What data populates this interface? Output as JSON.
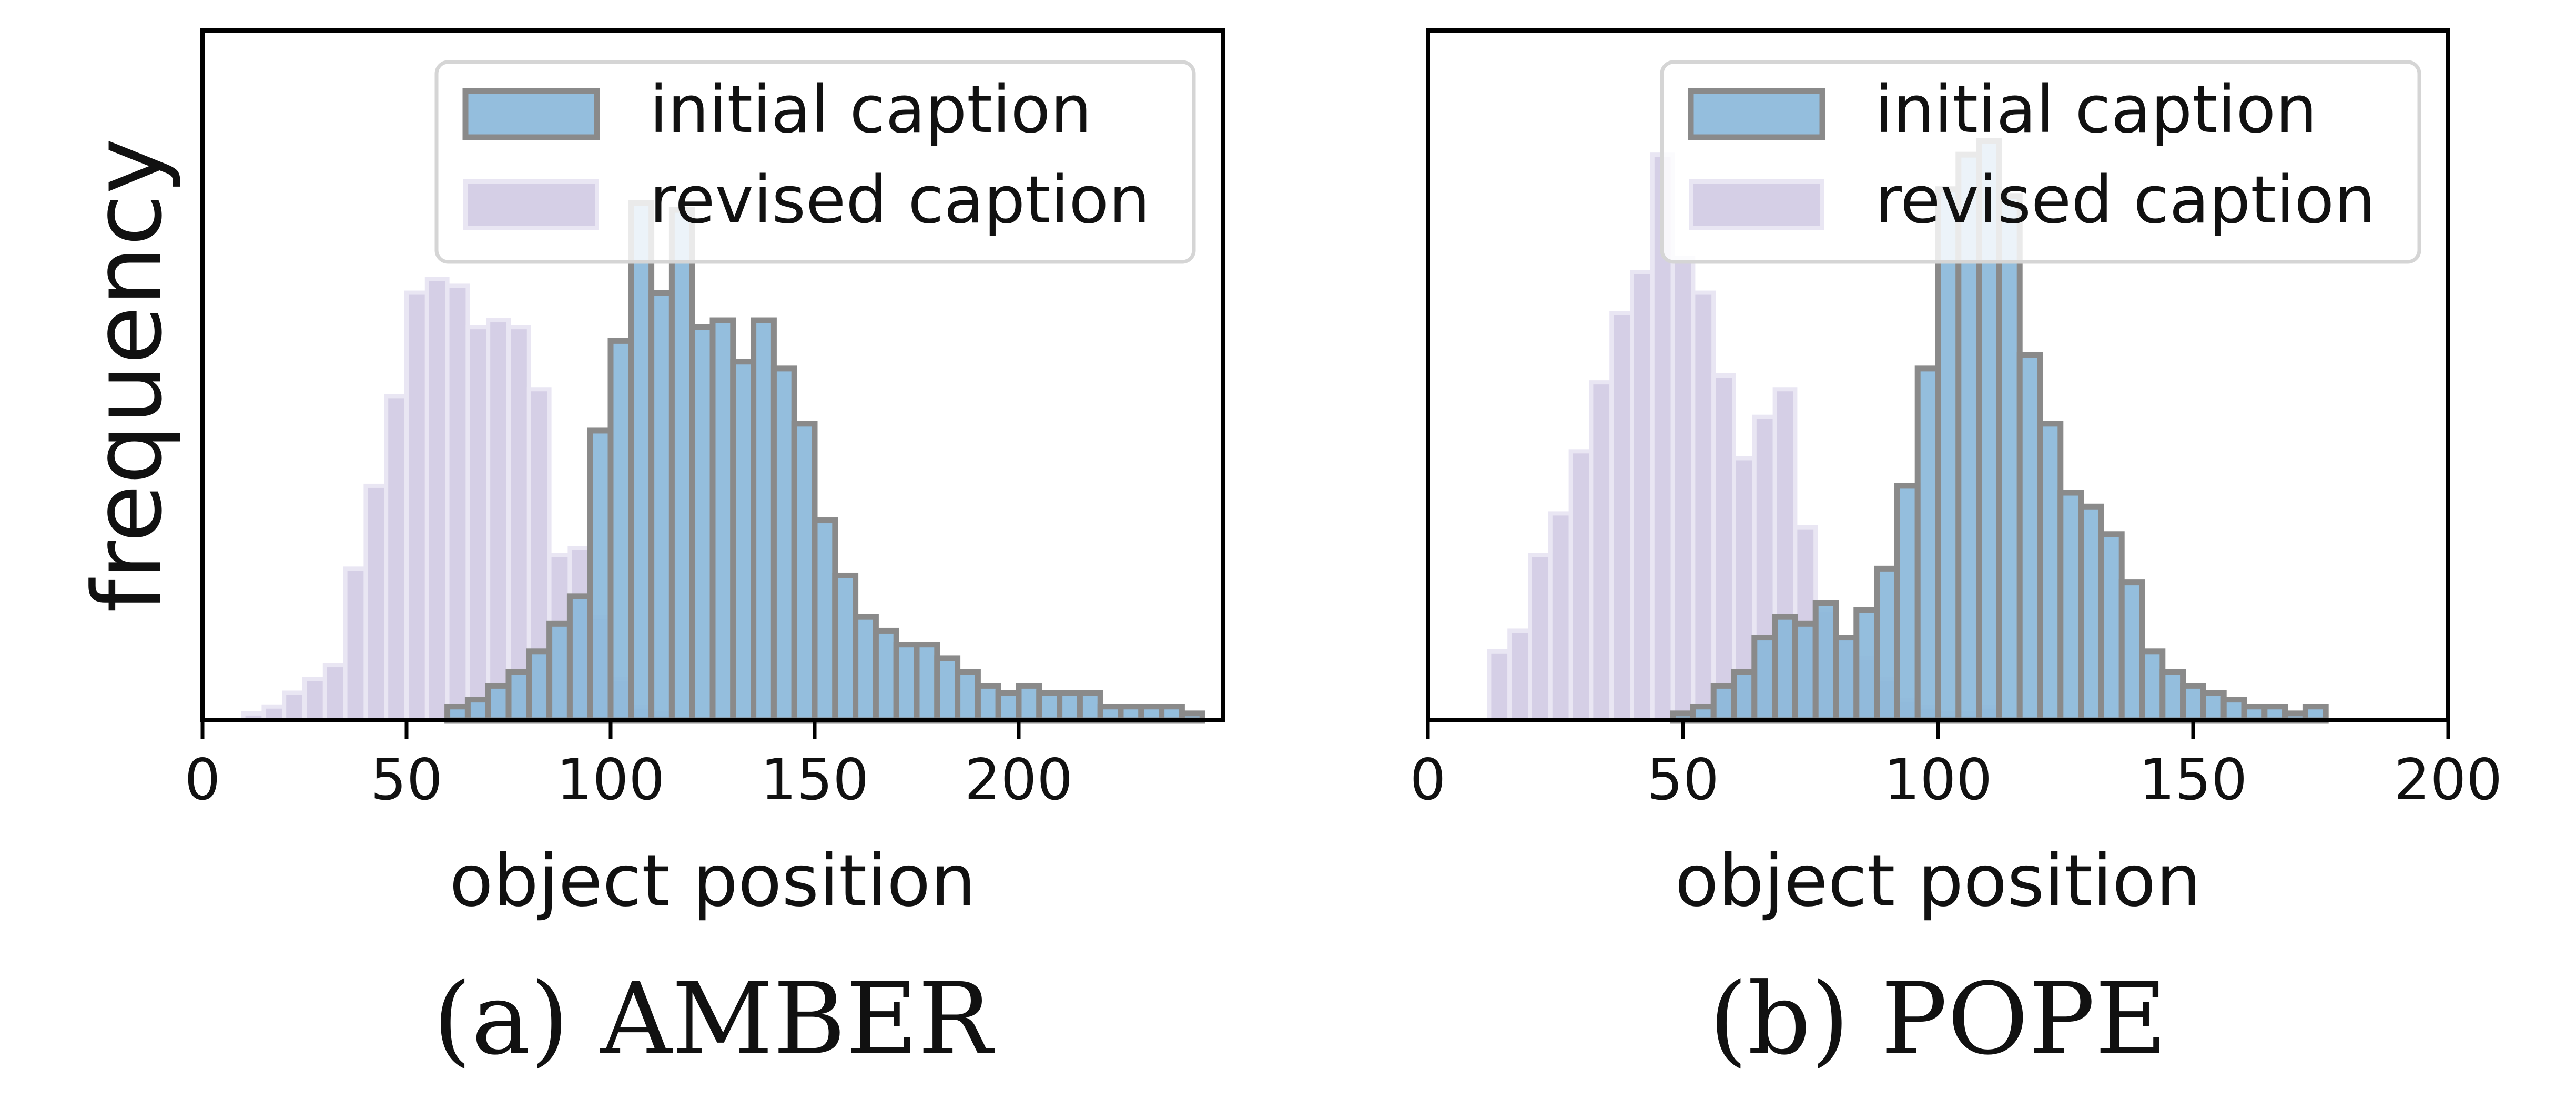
{
  "chart_data": [
    {
      "id": "amber",
      "type": "histogram",
      "subcaption": "(a) AMBER",
      "xlabel": "object position",
      "ylabel": "frequency",
      "show_ylabel": true,
      "show_yticks": false,
      "xlim": [
        0,
        250
      ],
      "ylim": [
        0,
        1.0
      ],
      "x_ticks": [
        0,
        50,
        100,
        150,
        200
      ],
      "x_tick_labels": [
        "0",
        "50",
        "100",
        "150",
        "200"
      ],
      "bin_width": 5,
      "legend": {
        "position": "top-right",
        "entries": [
          "initial caption",
          "revised caption"
        ]
      },
      "series": [
        {
          "name": "initial caption",
          "color": "#8bb9da",
          "edge": "#8a8a8a",
          "bins": [
            [
              60,
              0.02
            ],
            [
              65,
              0.03
            ],
            [
              70,
              0.05
            ],
            [
              75,
              0.07
            ],
            [
              80,
              0.1
            ],
            [
              85,
              0.14
            ],
            [
              90,
              0.18
            ],
            [
              95,
              0.42
            ],
            [
              100,
              0.55
            ],
            [
              105,
              0.75
            ],
            [
              110,
              0.62
            ],
            [
              115,
              0.74
            ],
            [
              120,
              0.57
            ],
            [
              125,
              0.58
            ],
            [
              130,
              0.52
            ],
            [
              135,
              0.58
            ],
            [
              140,
              0.51
            ],
            [
              145,
              0.43
            ],
            [
              150,
              0.29
            ],
            [
              155,
              0.21
            ],
            [
              160,
              0.15
            ],
            [
              165,
              0.13
            ],
            [
              170,
              0.11
            ],
            [
              175,
              0.11
            ],
            [
              180,
              0.09
            ],
            [
              185,
              0.07
            ],
            [
              190,
              0.05
            ],
            [
              195,
              0.04
            ],
            [
              200,
              0.05
            ],
            [
              205,
              0.04
            ],
            [
              210,
              0.04
            ],
            [
              215,
              0.04
            ],
            [
              220,
              0.02
            ],
            [
              225,
              0.02
            ],
            [
              230,
              0.02
            ],
            [
              235,
              0.02
            ],
            [
              240,
              0.01
            ]
          ]
        },
        {
          "name": "revised caption",
          "color": "#c9c2df",
          "edge": "#e9e6f3",
          "bins": [
            [
              10,
              0.01
            ],
            [
              15,
              0.02
            ],
            [
              20,
              0.04
            ],
            [
              25,
              0.06
            ],
            [
              30,
              0.08
            ],
            [
              35,
              0.22
            ],
            [
              40,
              0.34
            ],
            [
              45,
              0.47
            ],
            [
              50,
              0.62
            ],
            [
              55,
              0.64
            ],
            [
              60,
              0.63
            ],
            [
              65,
              0.57
            ],
            [
              70,
              0.58
            ],
            [
              75,
              0.57
            ],
            [
              80,
              0.48
            ],
            [
              85,
              0.24
            ],
            [
              90,
              0.25
            ],
            [
              95,
              0.15
            ],
            [
              100,
              0.06
            ],
            [
              105,
              0.02
            ],
            [
              110,
              0.01
            ]
          ]
        }
      ]
    },
    {
      "id": "pope",
      "type": "histogram",
      "subcaption": "(b) POPE",
      "xlabel": "object position",
      "ylabel": "frequency",
      "show_ylabel": false,
      "show_yticks": false,
      "xlim": [
        0,
        200
      ],
      "ylim": [
        0,
        1.0
      ],
      "x_ticks": [
        0,
        50,
        100,
        150,
        200
      ],
      "x_tick_labels": [
        "0",
        "50",
        "100",
        "150",
        "200"
      ],
      "bin_width": 4,
      "legend": {
        "position": "top-right",
        "entries": [
          "initial caption",
          "revised caption"
        ]
      },
      "series": [
        {
          "name": "initial caption",
          "color": "#8bb9da",
          "edge": "#8a8a8a",
          "bins": [
            [
              48,
              0.01
            ],
            [
              52,
              0.02
            ],
            [
              56,
              0.05
            ],
            [
              60,
              0.07
            ],
            [
              64,
              0.12
            ],
            [
              68,
              0.15
            ],
            [
              72,
              0.14
            ],
            [
              76,
              0.17
            ],
            [
              80,
              0.12
            ],
            [
              84,
              0.16
            ],
            [
              88,
              0.22
            ],
            [
              92,
              0.34
            ],
            [
              96,
              0.51
            ],
            [
              100,
              0.77
            ],
            [
              104,
              0.82
            ],
            [
              108,
              0.84
            ],
            [
              112,
              0.76
            ],
            [
              116,
              0.53
            ],
            [
              120,
              0.43
            ],
            [
              124,
              0.33
            ],
            [
              128,
              0.31
            ],
            [
              132,
              0.27
            ],
            [
              136,
              0.2
            ],
            [
              140,
              0.1
            ],
            [
              144,
              0.07
            ],
            [
              148,
              0.05
            ],
            [
              152,
              0.04
            ],
            [
              156,
              0.03
            ],
            [
              160,
              0.02
            ],
            [
              164,
              0.02
            ],
            [
              168,
              0.01
            ],
            [
              172,
              0.02
            ]
          ]
        },
        {
          "name": "revised caption",
          "color": "#c9c2df",
          "edge": "#e9e6f3",
          "bins": [
            [
              12,
              0.1
            ],
            [
              16,
              0.13
            ],
            [
              20,
              0.24
            ],
            [
              24,
              0.3
            ],
            [
              28,
              0.39
            ],
            [
              32,
              0.49
            ],
            [
              36,
              0.59
            ],
            [
              40,
              0.65
            ],
            [
              44,
              0.82
            ],
            [
              48,
              0.67
            ],
            [
              52,
              0.62
            ],
            [
              56,
              0.5
            ],
            [
              60,
              0.38
            ],
            [
              64,
              0.44
            ],
            [
              68,
              0.48
            ],
            [
              72,
              0.28
            ],
            [
              76,
              0.16
            ],
            [
              80,
              0.12
            ],
            [
              84,
              0.09
            ],
            [
              88,
              0.06
            ],
            [
              92,
              0.03
            ],
            [
              96,
              0.02
            ],
            [
              100,
              0.01
            ],
            [
              104,
              0.01
            ],
            [
              108,
              0.02
            ]
          ]
        }
      ]
    }
  ]
}
